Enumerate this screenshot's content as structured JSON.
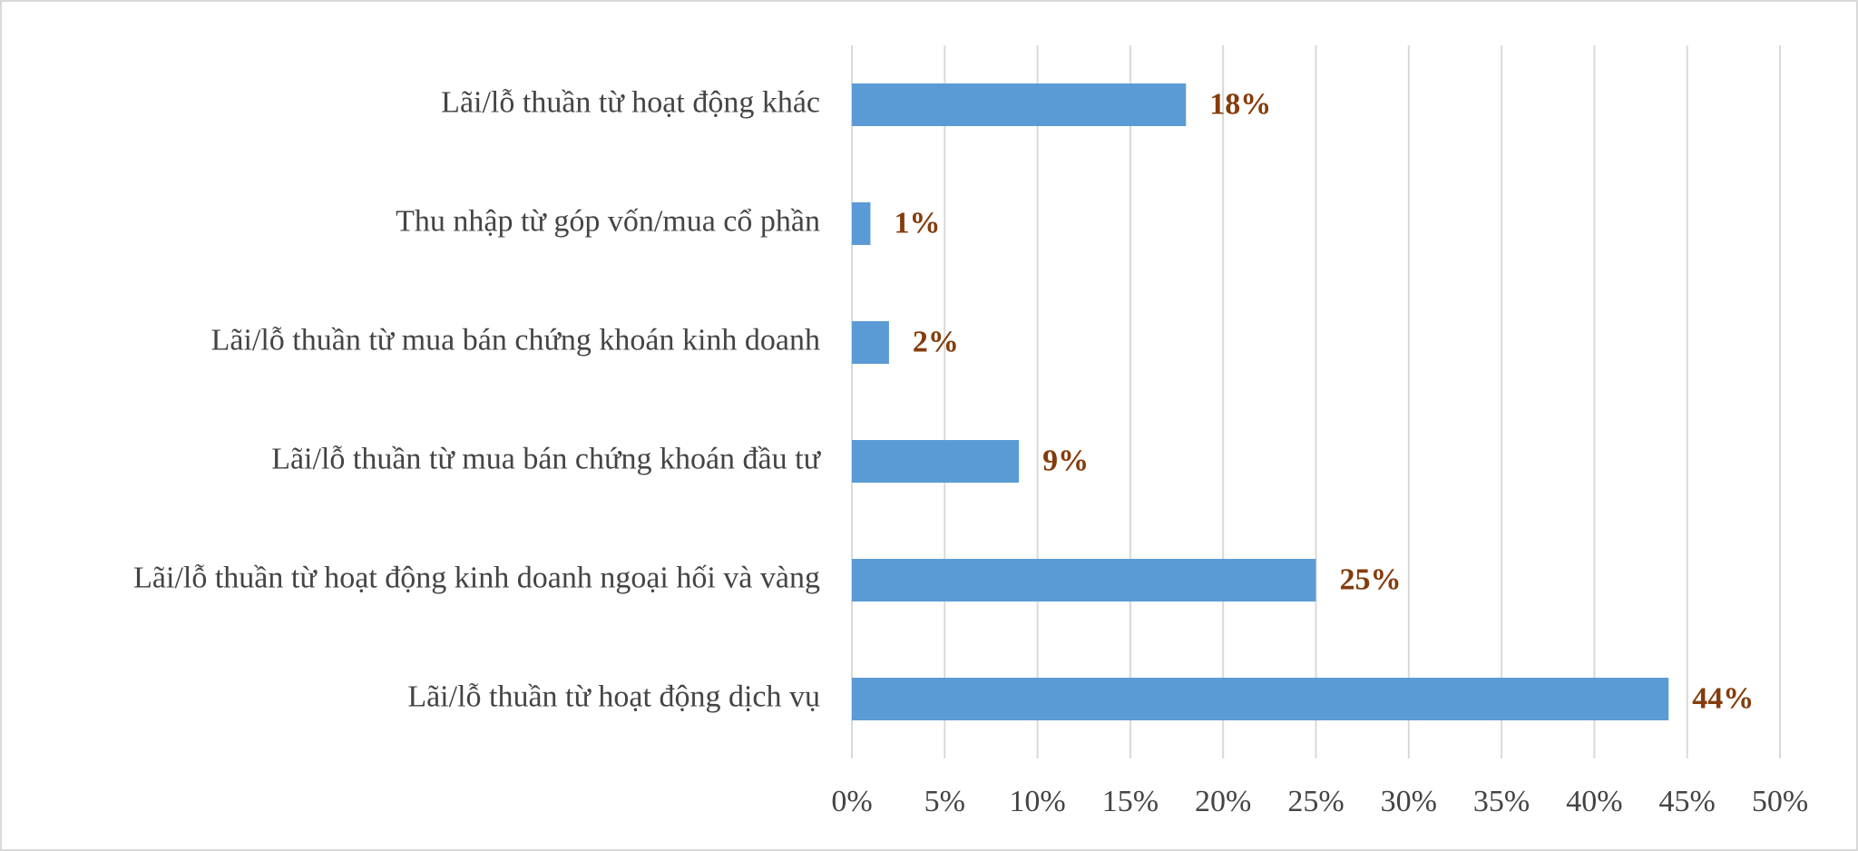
{
  "chart_data": {
    "type": "bar",
    "categories": [
      "Lãi/lỗ thuần từ hoạt động khác",
      "Thu nhập từ góp vốn/mua cổ phần",
      "Lãi/lỗ thuần từ mua bán chứng khoán kinh doanh",
      "Lãi/lỗ thuần từ mua bán chứng khoán đầu tư",
      "Lãi/lỗ thuần từ hoạt động kinh doanh ngoại hối và vàng",
      "Lãi/lỗ thuần từ hoạt động dịch vụ"
    ],
    "values": [
      18,
      1,
      2,
      9,
      25,
      44
    ],
    "value_labels": [
      "18%",
      "1%",
      "2%",
      "9%",
      "25%",
      "44%"
    ],
    "color": "#5b9bd5",
    "value_label_color": "#843c0c",
    "xlim": [
      0,
      50
    ],
    "xticks": [
      {
        "value": 0,
        "label": "0%"
      },
      {
        "value": 5,
        "label": "5%"
      },
      {
        "value": 10,
        "label": "10%"
      },
      {
        "value": 15,
        "label": "15%"
      },
      {
        "value": 20,
        "label": "20%"
      },
      {
        "value": 25,
        "label": "25%"
      },
      {
        "value": 30,
        "label": "30%"
      },
      {
        "value": 35,
        "label": "35%"
      },
      {
        "value": 40,
        "label": "40%"
      },
      {
        "value": 45,
        "label": "45%"
      },
      {
        "value": 50,
        "label": "50%"
      }
    ],
    "grid": true
  }
}
